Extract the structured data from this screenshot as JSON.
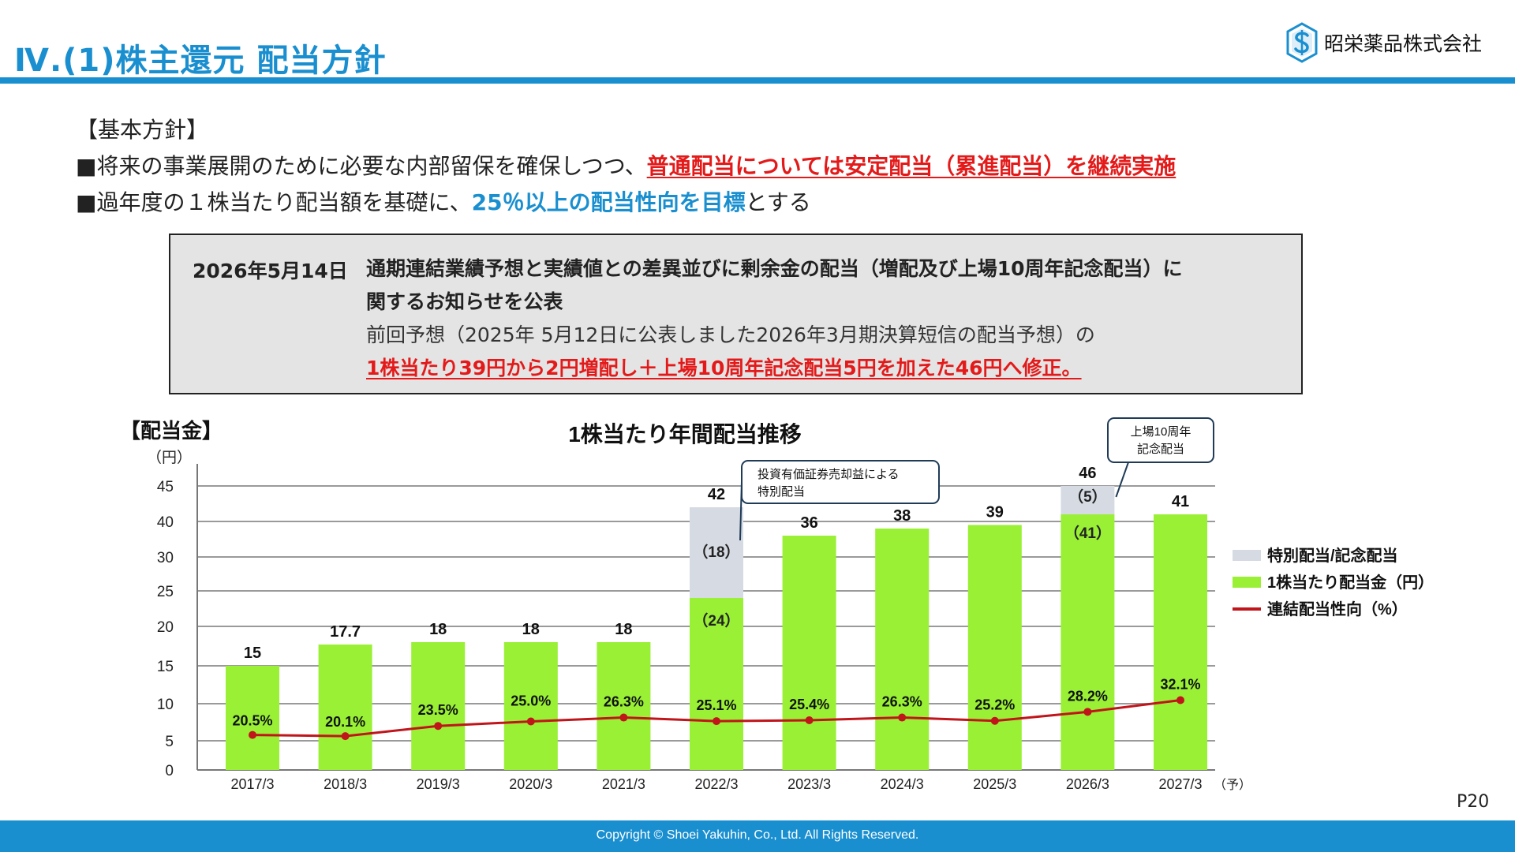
{
  "header": {
    "title": "Ⅳ.(1)株主還元 配当方針",
    "company": "昭栄薬品株式会社",
    "accent_color": "#1a8fd0"
  },
  "policy": {
    "heading": "【基本方針】",
    "line1_prefix": "■将来の事業展開のために必要な内部留保を確保しつつ、",
    "line1_highlight": "普通配当については安定配当（累進配当）を継続実施",
    "line2_prefix": "■過年度の１株当たり配当額を基礎に、",
    "line2_highlight": "25％以上の配当性向を目標",
    "line2_suffix": "とする"
  },
  "notice": {
    "date": "2026年5月14日",
    "title_line1": "通期連結業績予想と実績値との差異並びに剰余金の配当（増配及び上場10周年記念配当）に",
    "title_line2": "関するお知らせを公表",
    "detail": "前回予想（2025年 5月12日に公表しました2026年3月期決算短信の配当予想）の",
    "revision": "1株当たり39円から2円増配し＋上場10周年記念配当5円を加えた46円へ修正。"
  },
  "chart_data": {
    "type": "bar",
    "title": "1株当たり年間配当推移",
    "section_label": "【配当金】",
    "y_unit": "（円）",
    "y_ticks": [
      "0",
      "5",
      "10",
      "15",
      "20",
      "25",
      "30",
      "40",
      "45"
    ],
    "categories": [
      "2017/3",
      "2018/3",
      "2019/3",
      "2020/3",
      "2021/3",
      "2022/3",
      "2023/3",
      "2024/3",
      "2025/3",
      "2026/3",
      "2027/3"
    ],
    "forecast_mark": "（予）",
    "stacked": true,
    "series": [
      {
        "name": "1株当たり配当金（円）",
        "values": [
          15,
          17.7,
          18,
          18,
          18,
          24,
          36,
          38,
          39,
          41,
          41
        ],
        "color": "#99f034"
      },
      {
        "name": "特別配当/記念配当",
        "values": [
          0,
          0,
          0,
          0,
          0,
          18,
          0,
          0,
          0,
          5,
          0
        ],
        "color": "#d6dbe3"
      },
      {
        "name": "連結配当性向（%）",
        "type": "line",
        "values": [
          20.5,
          20.1,
          23.5,
          25.0,
          26.3,
          25.1,
          25.4,
          26.3,
          25.2,
          28.2,
          32.1
        ],
        "color": "#c0151b"
      }
    ],
    "total_labels": [
      "15",
      "17.7",
      "18",
      "18",
      "18",
      "42",
      "36",
      "38",
      "39",
      "46",
      "41"
    ],
    "payout_labels": [
      "20.5%",
      "20.1%",
      "23.5%",
      "25.0%",
      "26.3%",
      "25.1%",
      "25.4%",
      "26.3%",
      "25.2%",
      "28.2%",
      "32.1%"
    ],
    "inner_labels": [
      {
        "index": 5,
        "text": "（24）"
      },
      {
        "index": 5,
        "text": "（18）"
      },
      {
        "index": 9,
        "text": "（41）"
      },
      {
        "index": 9,
        "text": "（5）"
      }
    ],
    "callouts": [
      {
        "index": 5,
        "text": "投資有価証券売却益による\n特別配当"
      },
      {
        "index": 9,
        "text": "上場10周年\n記念配当"
      }
    ],
    "legend_position": "right",
    "grid": true
  },
  "page_number": "P20",
  "footer": {
    "copyright": "Copyright © Shoei Yakuhin, Co., Ltd. All Rights Reserved."
  }
}
